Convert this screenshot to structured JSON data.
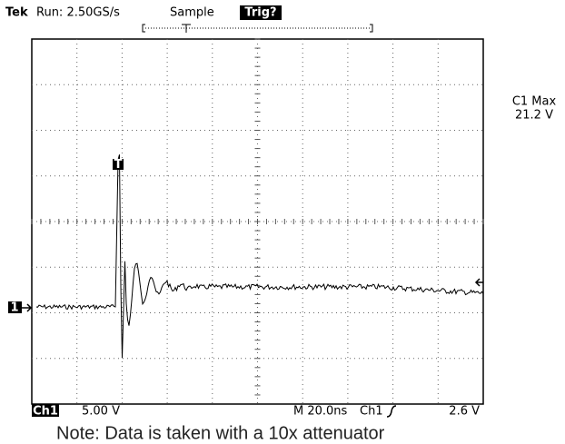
{
  "header": {
    "brand": "Tek",
    "run": "Run: 2.50GS/s",
    "mode": "Sample",
    "trigger": "Trig?"
  },
  "measurement": {
    "label": "C1 Max",
    "value": "21.2 V"
  },
  "markers": {
    "channel": "1",
    "trigger": "T"
  },
  "footer": {
    "channel": "Ch1",
    "scale": "5.00 V",
    "timebase": "M 20.0ns",
    "trigger_source": "Ch1",
    "trigger_level": "2.6 V"
  },
  "note": "Note: Data is taken with a 10x attenuator"
}
